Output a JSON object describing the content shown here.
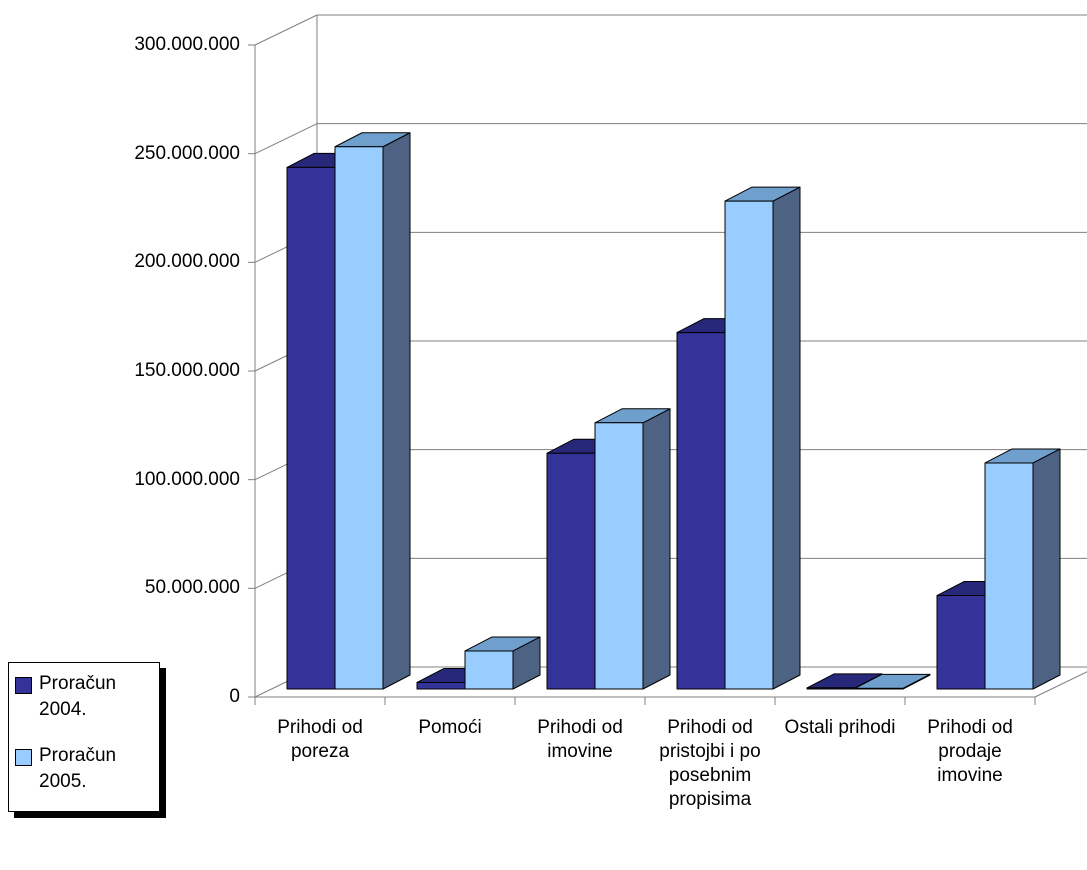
{
  "chart_data": {
    "type": "bar3d",
    "categories": [
      "Prihodi od poreza",
      "Pomoći",
      "Prihodi od imovine",
      "Prihodi od pristojbi i po posebnim propisima",
      "Ostali prihodi",
      "Prihodi od prodaje imovine"
    ],
    "series": [
      {
        "name": "Proračun 2004.",
        "color": "#333399",
        "values": [
          240000000,
          3000000,
          108500000,
          164000000,
          500000,
          43000000
        ]
      },
      {
        "name": "Proračun 2005.",
        "color": "#99ccff",
        "values": [
          249500000,
          17500000,
          122500000,
          224500000,
          300000,
          104000000
        ]
      }
    ],
    "ylim": [
      0,
      300000000
    ],
    "yticks": [
      {
        "value": 0,
        "label": "0"
      },
      {
        "value": 50000000,
        "label": "50.000.000"
      },
      {
        "value": 100000000,
        "label": "100.000.000"
      },
      {
        "value": 150000000,
        "label": "150.000.000"
      },
      {
        "value": 200000000,
        "label": "200.000.000"
      },
      {
        "value": 250000000,
        "label": "250.000.000"
      },
      {
        "value": 300000000,
        "label": "300.000.000"
      }
    ],
    "grid": true,
    "legend": "left"
  }
}
